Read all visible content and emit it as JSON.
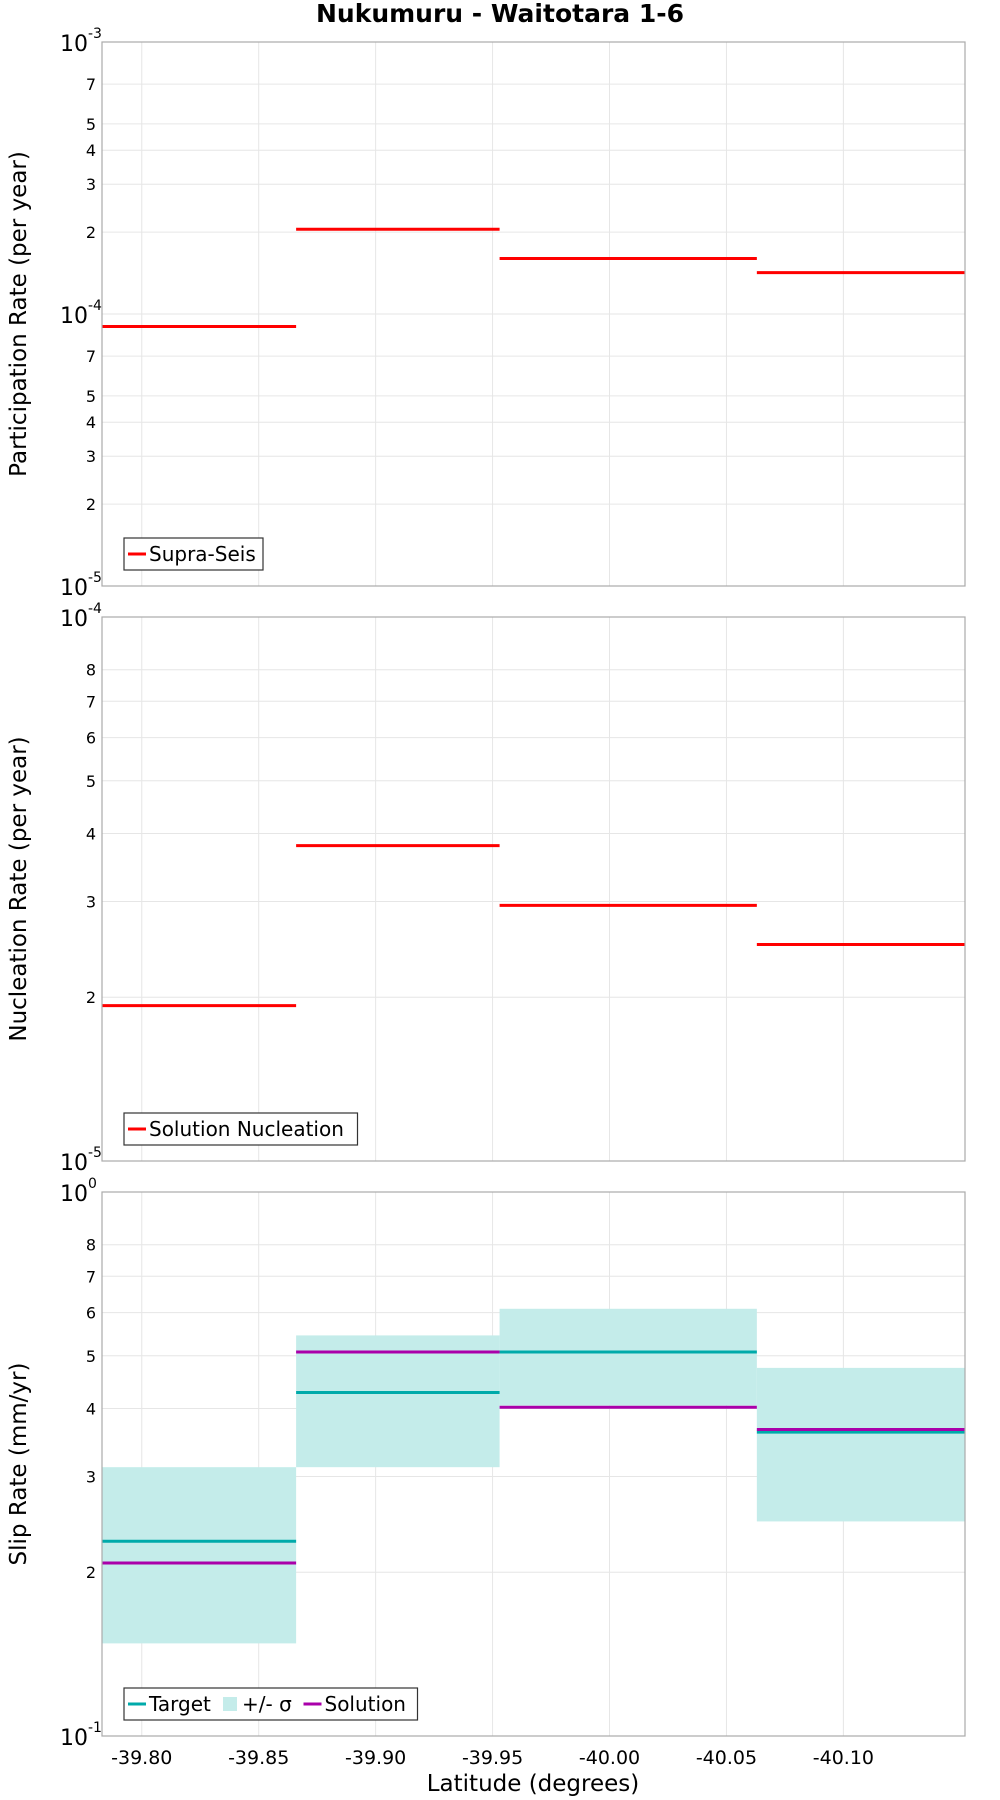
{
  "chart_data": {
    "title": "Nukumuru - Waitotara 1-6",
    "xlabel": "Latitude (degrees)",
    "x_ticks": [
      "-39.80",
      "-39.85",
      "-39.90",
      "-39.95",
      "-40.00",
      "-40.05",
      "-40.10"
    ],
    "x_tick_values": [
      -39.8,
      -39.85,
      -39.9,
      -39.95,
      -40.0,
      -40.05,
      -40.1
    ],
    "xlim": [
      -39.783,
      -40.152
    ],
    "grid": true,
    "panels": [
      {
        "id": "participation",
        "type": "line",
        "ylabel": "Participation Rate (per year)",
        "yscale": "log",
        "ylim": [
          1e-05,
          0.001
        ],
        "decade_ticks": [
          {
            "mantissa": "10",
            "exponent": "-5",
            "value": 1e-05
          },
          {
            "mantissa": "10",
            "exponent": "-4",
            "value": 0.0001
          },
          {
            "mantissa": "10",
            "exponent": "-3",
            "value": 0.001
          }
        ],
        "minor_ticks": [
          {
            "label": "2",
            "value": 2e-05
          },
          {
            "label": "3",
            "value": 3e-05
          },
          {
            "label": "4",
            "value": 4e-05
          },
          {
            "label": "5",
            "value": 5e-05
          },
          {
            "label": "7",
            "value": 7e-05
          },
          {
            "label": "2",
            "value": 0.0002
          },
          {
            "label": "3",
            "value": 0.0003
          },
          {
            "label": "4",
            "value": 0.0004
          },
          {
            "label": "5",
            "value": 0.0005
          },
          {
            "label": "7",
            "value": 0.0007
          }
        ],
        "legend": {
          "position": "bottom-left",
          "entries": [
            {
              "label": "Supra-Seis",
              "kind": "line",
              "color": "#ff0000"
            }
          ]
        },
        "series": [
          {
            "name": "Supra-Seis",
            "color": "#ff0000",
            "segments": [
              {
                "x": [
                  -39.783,
                  -39.866
                ],
                "y": 9e-05
              },
              {
                "x": [
                  -39.866,
                  -39.953
                ],
                "y": 0.000205
              },
              {
                "x": [
                  -39.953,
                  -40.063
                ],
                "y": 0.00016
              },
              {
                "x": [
                  -40.063,
                  -40.152
                ],
                "y": 0.000142
              }
            ]
          }
        ]
      },
      {
        "id": "nucleation",
        "type": "line",
        "ylabel": "Nucleation Rate (per year)",
        "yscale": "log",
        "ylim": [
          1e-05,
          0.0001
        ],
        "decade_ticks": [
          {
            "mantissa": "10",
            "exponent": "-5",
            "value": 1e-05
          },
          {
            "mantissa": "10",
            "exponent": "-4",
            "value": 0.0001
          }
        ],
        "minor_ticks": [
          {
            "label": "2",
            "value": 2e-05
          },
          {
            "label": "3",
            "value": 3e-05
          },
          {
            "label": "4",
            "value": 4e-05
          },
          {
            "label": "5",
            "value": 5e-05
          },
          {
            "label": "6",
            "value": 6e-05
          },
          {
            "label": "7",
            "value": 7e-05
          },
          {
            "label": "8",
            "value": 8e-05
          }
        ],
        "legend": {
          "position": "bottom-left",
          "entries": [
            {
              "label": "Solution Nucleation",
              "kind": "line",
              "color": "#ff0000"
            }
          ]
        },
        "series": [
          {
            "name": "Solution Nucleation",
            "color": "#ff0000",
            "segments": [
              {
                "x": [
                  -39.783,
                  -39.866
                ],
                "y": 1.93e-05
              },
              {
                "x": [
                  -39.866,
                  -39.953
                ],
                "y": 3.8e-05
              },
              {
                "x": [
                  -39.953,
                  -40.063
                ],
                "y": 2.95e-05
              },
              {
                "x": [
                  -40.063,
                  -40.152
                ],
                "y": 2.5e-05
              }
            ]
          }
        ]
      },
      {
        "id": "slip",
        "type": "line",
        "ylabel": "Slip Rate (mm/yr)",
        "yscale": "log",
        "ylim": [
          0.1,
          1.0
        ],
        "decade_ticks": [
          {
            "mantissa": "10",
            "exponent": "-1",
            "value": 0.1
          },
          {
            "mantissa": "10",
            "exponent": "0",
            "value": 1.0
          }
        ],
        "minor_ticks": [
          {
            "label": "2",
            "value": 0.2
          },
          {
            "label": "3",
            "value": 0.3
          },
          {
            "label": "4",
            "value": 0.4
          },
          {
            "label": "5",
            "value": 0.5
          },
          {
            "label": "6",
            "value": 0.6
          },
          {
            "label": "7",
            "value": 0.7
          },
          {
            "label": "8",
            "value": 0.8
          }
        ],
        "legend": {
          "position": "bottom-left",
          "entries": [
            {
              "label": "Target",
              "kind": "line",
              "color": "#00aaaa"
            },
            {
              "label": "+/- σ",
              "kind": "box",
              "color": "#c4ecea"
            },
            {
              "label": "Solution",
              "kind": "line",
              "color": "#aa00aa"
            }
          ]
        },
        "bands": [
          {
            "name": "+/- σ",
            "color": "#c4ecea",
            "segments": [
              {
                "x": [
                  -39.783,
                  -39.866
                ],
                "y0": 0.148,
                "y1": 0.312
              },
              {
                "x": [
                  -39.866,
                  -39.953
                ],
                "y0": 0.312,
                "y1": 0.545
              },
              {
                "x": [
                  -39.953,
                  -40.063
                ],
                "y0": 0.405,
                "y1": 0.61
              },
              {
                "x": [
                  -40.063,
                  -40.152
                ],
                "y0": 0.248,
                "y1": 0.475
              }
            ]
          }
        ],
        "series": [
          {
            "name": "Target",
            "color": "#00aaaa",
            "segments": [
              {
                "x": [
                  -39.783,
                  -39.866
                ],
                "y": 0.228
              },
              {
                "x": [
                  -39.866,
                  -39.953
                ],
                "y": 0.428
              },
              {
                "x": [
                  -39.953,
                  -40.063
                ],
                "y": 0.508
              },
              {
                "x": [
                  -40.063,
                  -40.152
                ],
                "y": 0.362
              }
            ]
          },
          {
            "name": "Solution",
            "color": "#aa00aa",
            "segments": [
              {
                "x": [
                  -39.783,
                  -39.866
                ],
                "y": 0.208
              },
              {
                "x": [
                  -39.866,
                  -39.953
                ],
                "y": 0.508
              },
              {
                "x": [
                  -39.953,
                  -40.063
                ],
                "y": 0.402
              },
              {
                "x": [
                  -40.063,
                  -40.152
                ],
                "y": 0.366
              }
            ]
          }
        ]
      }
    ]
  }
}
